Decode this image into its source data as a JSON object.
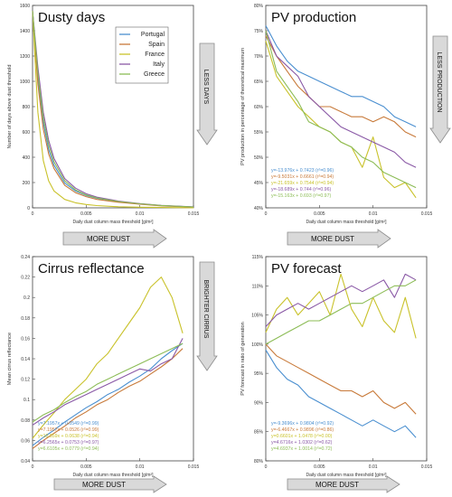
{
  "colors": {
    "portugal": "#4a8fd0",
    "spain": "#c87a3a",
    "france": "#c9c22b",
    "italy": "#8a59a6",
    "greece": "#8cbc56",
    "arrow_fill": "#d9d9d9",
    "arrow_stroke": "#8c8c8c"
  },
  "arrows": {
    "more_dust": "MORE DUST",
    "less_days": "LESS DAYS",
    "less_production": "LESS PRODUCTION",
    "brighter_cirrus": "BRIGHTER CIRRUS"
  },
  "chart_data": [
    {
      "type": "line",
      "title": "Dusty days",
      "xlabel": "Daily dust column mass threshold [g/m²]",
      "ylabel": "Number of days above dust threshold",
      "xlim": [
        0,
        0.015
      ],
      "ylim": [
        0,
        1800
      ],
      "xticks": [
        "0",
        "0.005",
        "0.01",
        "0.015"
      ],
      "yticks": [
        "0",
        "200",
        "400",
        "600",
        "800",
        "1000",
        "1200",
        "1400",
        "1600"
      ],
      "legend": [
        "Portugal",
        "Spain",
        "France",
        "Italy",
        "Greece"
      ],
      "legend_position": "top-right",
      "x": [
        0,
        0.0005,
        0.001,
        0.0015,
        0.002,
        0.003,
        0.004,
        0.005,
        0.006,
        0.008,
        0.01,
        0.012,
        0.015
      ],
      "series": [
        {
          "name": "Portugal",
          "values": [
            1750,
            1150,
            760,
            520,
            380,
            220,
            150,
            110,
            85,
            55,
            35,
            20,
            8
          ]
        },
        {
          "name": "Spain",
          "values": [
            1750,
            1100,
            700,
            480,
            350,
            200,
            135,
            100,
            75,
            50,
            32,
            18,
            6
          ]
        },
        {
          "name": "France",
          "values": [
            1750,
            850,
            420,
            240,
            150,
            75,
            45,
            30,
            20,
            10,
            6,
            3,
            1
          ]
        },
        {
          "name": "Italy",
          "values": [
            1750,
            1250,
            850,
            600,
            440,
            260,
            175,
            125,
            95,
            60,
            38,
            22,
            9
          ]
        },
        {
          "name": "Greece",
          "values": [
            1750,
            1200,
            800,
            560,
            410,
            240,
            160,
            115,
            88,
            56,
            36,
            21,
            8
          ]
        }
      ]
    },
    {
      "type": "line",
      "title": "PV production",
      "xlabel": "Daily dust column mass threshold [g/m²]",
      "ylabel": "PV production in percentage of theoretical maximum",
      "xlim": [
        0,
        0.015
      ],
      "ylim": [
        0.4,
        0.8
      ],
      "xticks": [
        "0",
        "0.005",
        "0.01",
        "0.015"
      ],
      "yticks": [
        "40%",
        "45%",
        "50%",
        "55%",
        "60%",
        "65%",
        "70%",
        "75%",
        "80%"
      ],
      "fits": [
        "y=-13.976x + 0.7423 (r²=0.96)",
        "y=-9.5031x + 0.6661 (r²=0.94)",
        "y=-21.659x + 0.7544 (r²=0.94)",
        "y=-18.689x + 0.744 (r²=0.96)",
        "y=-15.163x + 0.693 (r²=0.97)"
      ],
      "x": [
        0,
        0.001,
        0.002,
        0.003,
        0.004,
        0.005,
        0.006,
        0.007,
        0.008,
        0.009,
        0.01,
        0.011,
        0.012,
        0.013,
        0.014
      ],
      "series": [
        {
          "name": "Portugal",
          "values": [
            0.76,
            0.72,
            0.69,
            0.67,
            0.66,
            0.65,
            0.64,
            0.63,
            0.62,
            0.62,
            0.61,
            0.6,
            0.58,
            0.57,
            0.56
          ]
        },
        {
          "name": "Spain",
          "values": [
            0.74,
            0.7,
            0.67,
            0.64,
            0.62,
            0.6,
            0.6,
            0.59,
            0.58,
            0.58,
            0.57,
            0.58,
            0.57,
            0.55,
            0.54
          ]
        },
        {
          "name": "France",
          "values": [
            0.73,
            0.66,
            0.63,
            0.6,
            0.58,
            0.56,
            0.55,
            0.53,
            0.52,
            0.48,
            0.54,
            0.46,
            0.44,
            0.45,
            0.42
          ]
        },
        {
          "name": "Italy",
          "values": [
            0.75,
            0.7,
            0.68,
            0.66,
            0.62,
            0.6,
            0.58,
            0.56,
            0.55,
            0.54,
            0.53,
            0.52,
            0.51,
            0.49,
            0.48
          ]
        },
        {
          "name": "Greece",
          "values": [
            0.75,
            0.67,
            0.64,
            0.61,
            0.57,
            0.56,
            0.55,
            0.53,
            0.52,
            0.5,
            0.49,
            0.47,
            0.46,
            0.45,
            0.44
          ]
        }
      ]
    },
    {
      "type": "line",
      "title": "Cirrus reflectance",
      "xlabel": "Daily dust column mass threshold [g/m²]",
      "ylabel": "Mean cirrus reflectance",
      "xlim": [
        0,
        0.015
      ],
      "ylim": [
        0.04,
        0.24
      ],
      "xticks": [
        "0",
        "0.005",
        "0.01",
        "0.015"
      ],
      "yticks": [
        "0.04",
        "0.06",
        "0.08",
        "0.1",
        "0.12",
        "0.14",
        "0.16",
        "0.18",
        "0.2",
        "0.22",
        "0.24"
      ],
      "fits": [
        "y=7.1957x + 0.0549 (r²=0.99)",
        "y=7.1957x + 0.0526 (r²=0.99)",
        "y=10.859x + 0.0638 (r²=0.94)",
        "y=6.2565x + 0.0753 (r²=0.97)",
        "y=6.6105x + 0.0779 (r²=0.94)"
      ],
      "x": [
        0,
        0.001,
        0.002,
        0.003,
        0.004,
        0.005,
        0.006,
        0.007,
        0.008,
        0.009,
        0.01,
        0.011,
        0.012,
        0.013,
        0.014
      ],
      "series": [
        {
          "name": "Portugal",
          "values": [
            0.055,
            0.063,
            0.07,
            0.078,
            0.085,
            0.092,
            0.098,
            0.105,
            0.11,
            0.117,
            0.123,
            0.13,
            0.14,
            0.148,
            0.155
          ]
        },
        {
          "name": "Spain",
          "values": [
            0.052,
            0.06,
            0.067,
            0.074,
            0.082,
            0.088,
            0.095,
            0.1,
            0.107,
            0.113,
            0.118,
            0.125,
            0.132,
            0.14,
            0.15
          ]
        },
        {
          "name": "France",
          "values": [
            0.062,
            0.075,
            0.087,
            0.1,
            0.11,
            0.12,
            0.135,
            0.145,
            0.16,
            0.175,
            0.19,
            0.21,
            0.22,
            0.2,
            0.165
          ]
        },
        {
          "name": "Italy",
          "values": [
            0.075,
            0.082,
            0.088,
            0.095,
            0.1,
            0.105,
            0.11,
            0.115,
            0.12,
            0.125,
            0.13,
            0.128,
            0.135,
            0.14,
            0.16
          ]
        },
        {
          "name": "Greece",
          "values": [
            0.078,
            0.085,
            0.09,
            0.097,
            0.103,
            0.108,
            0.115,
            0.12,
            0.125,
            0.13,
            0.135,
            0.14,
            0.145,
            0.15,
            0.155
          ]
        }
      ]
    },
    {
      "type": "line",
      "title": "PV forecast",
      "xlabel": "Daily dust column mass threshold [g/m²]",
      "ylabel": "PV forecast in ratio of generation",
      "xlim": [
        0,
        0.015
      ],
      "ylim": [
        0.8,
        1.15
      ],
      "xticks": [
        "0",
        "0.005",
        "0.01",
        "0.015"
      ],
      "yticks": [
        "80%",
        "85%",
        "90%",
        "95%",
        "100%",
        "105%",
        "110%",
        "115%"
      ],
      "fits": [
        "y=-9.3696x + 0.9804 (r²=0.92)",
        "y=-6.4667x + 0.9896 (r²=0.86)",
        "y=0.6601x + 1.0478 (r²=0.00)",
        "y=4.6716x + 1.0302 (r²=0.62)",
        "y=4.6937x + 1.0014 (r²=0.72)"
      ],
      "x": [
        0,
        0.001,
        0.002,
        0.003,
        0.004,
        0.005,
        0.006,
        0.007,
        0.008,
        0.009,
        0.01,
        0.011,
        0.012,
        0.013,
        0.014
      ],
      "series": [
        {
          "name": "Portugal",
          "values": [
            0.99,
            0.96,
            0.94,
            0.93,
            0.91,
            0.9,
            0.89,
            0.88,
            0.87,
            0.86,
            0.87,
            0.86,
            0.85,
            0.86,
            0.84
          ]
        },
        {
          "name": "Spain",
          "values": [
            1.0,
            0.98,
            0.97,
            0.96,
            0.95,
            0.94,
            0.93,
            0.92,
            0.92,
            0.91,
            0.92,
            0.9,
            0.89,
            0.9,
            0.88
          ]
        },
        {
          "name": "France",
          "values": [
            1.02,
            1.06,
            1.08,
            1.05,
            1.07,
            1.09,
            1.05,
            1.12,
            1.06,
            1.03,
            1.08,
            1.04,
            1.02,
            1.08,
            1.01
          ]
        },
        {
          "name": "Italy",
          "values": [
            1.03,
            1.05,
            1.06,
            1.07,
            1.06,
            1.07,
            1.08,
            1.09,
            1.1,
            1.09,
            1.1,
            1.11,
            1.08,
            1.12,
            1.11
          ]
        },
        {
          "name": "Greece",
          "values": [
            1.0,
            1.01,
            1.02,
            1.03,
            1.04,
            1.04,
            1.05,
            1.06,
            1.07,
            1.07,
            1.08,
            1.09,
            1.1,
            1.1,
            1.11
          ]
        }
      ]
    }
  ]
}
